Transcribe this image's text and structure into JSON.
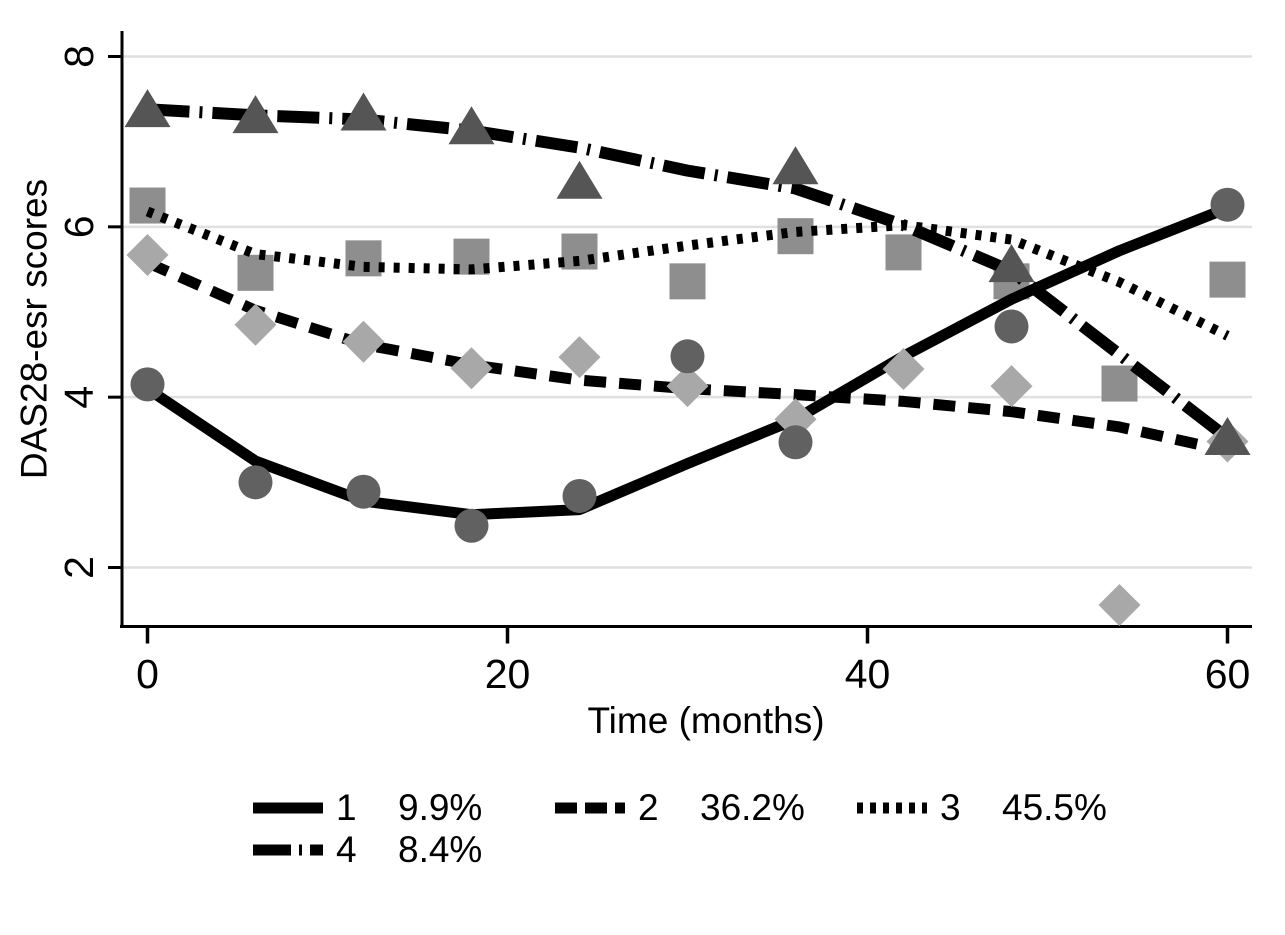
{
  "figure": {
    "background": "#ffffff"
  },
  "chart_data": {
    "type": "line",
    "title": "",
    "xlabel": "Time (months)",
    "ylabel": "DAS28-esr scores",
    "x_ticks": [
      0,
      20,
      40,
      60
    ],
    "y_ticks": [
      2,
      4,
      6,
      8
    ],
    "xlim": [
      -1.4,
      61.4
    ],
    "ylim": [
      1.31,
      8.3
    ],
    "grid": "horizontal",
    "grid_color": "#e0e0e0",
    "axis_color": "#000000",
    "line_color": "#000000",
    "legend_position": "bottom",
    "months": [
      0,
      6,
      12,
      18,
      24,
      30,
      36,
      42,
      48,
      54,
      60
    ],
    "series": [
      {
        "name": "1",
        "pct": "9.9%",
        "line_style": "solid",
        "marker": "circle",
        "marker_color": "#616161",
        "fit_y": [
          4.1,
          3.25,
          2.78,
          2.62,
          2.68,
          3.22,
          3.74,
          4.48,
          5.15,
          5.72,
          6.22
        ],
        "points_x": [
          0,
          6,
          12,
          18,
          24,
          30,
          36,
          48,
          60
        ],
        "points_y": [
          4.15,
          3.0,
          2.89,
          2.49,
          2.84,
          4.48,
          3.47,
          4.83,
          6.26
        ]
      },
      {
        "name": "2",
        "pct": "36.2%",
        "line_style": "dashed",
        "marker": "diamond",
        "marker_color": "#a8a8a8",
        "fit_y": [
          5.58,
          5.02,
          4.62,
          4.38,
          4.2,
          4.1,
          4.03,
          3.95,
          3.83,
          3.65,
          3.37
        ],
        "points_x": [
          0,
          6,
          12,
          18,
          24,
          30,
          36,
          42,
          48,
          54,
          60
        ],
        "points_y": [
          5.67,
          4.85,
          4.65,
          4.34,
          4.47,
          4.13,
          3.74,
          4.33,
          4.13,
          1.56,
          3.48
        ]
      },
      {
        "name": "3",
        "pct": "45.5%",
        "line_style": "dotted",
        "marker": "square",
        "marker_color": "#8e8e8e",
        "fit_y": [
          6.18,
          5.68,
          5.53,
          5.5,
          5.6,
          5.78,
          5.94,
          6.02,
          5.85,
          5.35,
          4.72
        ],
        "points_x": [
          0,
          6,
          12,
          18,
          24,
          30,
          36,
          42,
          48,
          54,
          60
        ],
        "points_y": [
          6.25,
          5.46,
          5.63,
          5.65,
          5.71,
          5.36,
          5.89,
          5.7,
          5.36,
          4.16,
          5.38
        ]
      },
      {
        "name": "4",
        "pct": "8.4%",
        "line_style": "dashdot",
        "marker": "triangle",
        "marker_color": "#555555",
        "fit_y": [
          7.38,
          7.31,
          7.26,
          7.13,
          6.93,
          6.66,
          6.45,
          6.02,
          5.48,
          4.5,
          3.52
        ],
        "points_x": [
          0,
          6,
          12,
          18,
          24,
          36,
          48,
          60
        ],
        "points_y": [
          7.37,
          7.3,
          7.33,
          7.17,
          6.53,
          6.7,
          5.55,
          3.52
        ]
      }
    ]
  }
}
